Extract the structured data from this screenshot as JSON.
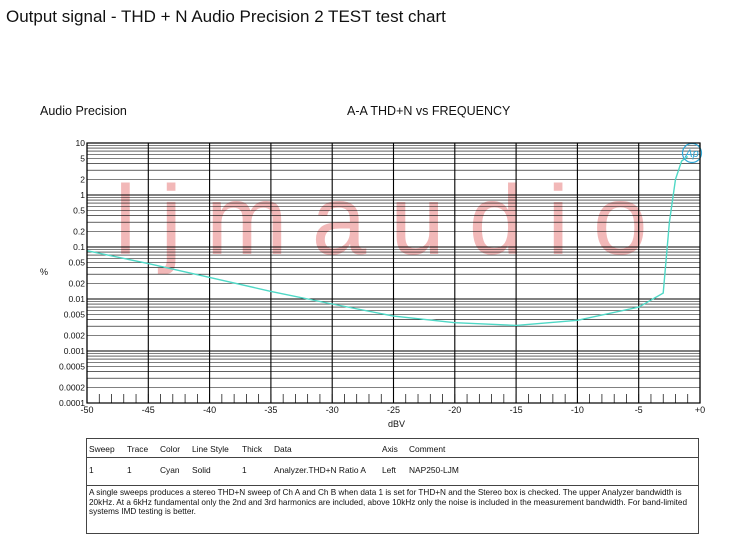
{
  "page_title": "Output signal - THD + N Audio Precision 2 TEST test chart",
  "brand_label": "Audio Precision",
  "logo_text": "Ap",
  "watermark_text": "ljmaudio",
  "colors": {
    "trace": "#4fd8c6",
    "grid": "#000000",
    "watermark": "#f2b8b8"
  },
  "chart_data": {
    "type": "line",
    "title": "A-A THD+N vs FREQUENCY",
    "xlabel": "dBV",
    "ylabel": "%",
    "x_scale": "linear",
    "y_scale": "log",
    "xlim": [
      -50,
      0
    ],
    "ylim": [
      0.0001,
      10
    ],
    "x_ticks": [
      "-50",
      "-45",
      "-40",
      "-35",
      "-30",
      "-25",
      "-20",
      "-15",
      "-10",
      "-5",
      "+0"
    ],
    "y_ticks": [
      "10",
      "5",
      "2",
      "1",
      "0.5",
      "0.2",
      "0.1",
      "0.05",
      "0.02",
      "0.01",
      "0.005",
      "0.002",
      "0.001",
      "0.0005",
      "0.0002",
      "0.0001"
    ],
    "grid": true,
    "series": [
      {
        "name": "Analyzer.THD+N Ratio A",
        "x": [
          -50,
          -45,
          -40,
          -35,
          -30,
          -25,
          -20,
          -15,
          -10,
          -5,
          -3,
          -2.5,
          -2,
          -1.5,
          -1
        ],
        "y": [
          0.085,
          0.048,
          0.026,
          0.014,
          0.008,
          0.0047,
          0.0035,
          0.0031,
          0.0039,
          0.007,
          0.013,
          0.3,
          2.0,
          4.5,
          5.5
        ]
      }
    ]
  },
  "legend_table": {
    "headers": [
      "Sweep",
      "Trace",
      "Color",
      "Line Style",
      "Thick",
      "Data",
      "Axis",
      "Comment"
    ],
    "row": [
      "1",
      "1",
      "Cyan",
      "Solid",
      "1",
      "Analyzer.THD+N Ratio A",
      "Left",
      "NAP250-LJM"
    ],
    "note": "A single sweeps produces a stereo THD+N sweep of Ch A and Ch B when data 1 is set for THD+N and the Stereo box is checked.  The upper Analyzer bandwidth is 20kHz.  At a 6kHz fundamental only the 2nd and 3rd harmonics are included, above 10kHz only the noise is included in the measurement bandwidth.  For band-limited systems IMD testing is better."
  }
}
